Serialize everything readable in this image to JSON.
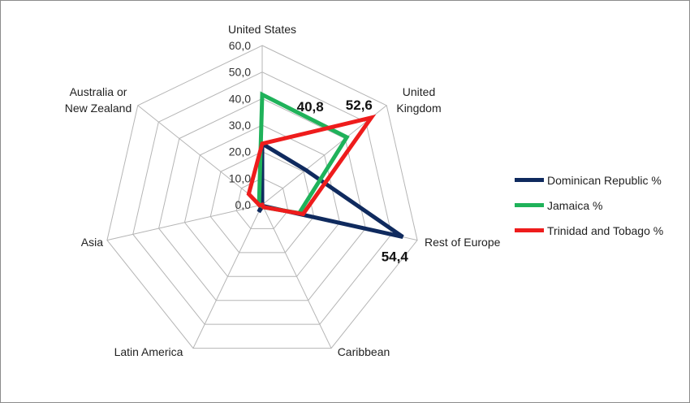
{
  "chart_data": {
    "type": "radar",
    "categories": [
      "United States",
      "United Kingdom",
      "Rest of Europe",
      "Caribbean",
      "Latin America",
      "Asia",
      "Australia or New Zealand"
    ],
    "category_lines": [
      [
        "United States"
      ],
      [
        "United",
        "Kingdom"
      ],
      [
        "Rest of Europe"
      ],
      [
        "Caribbean"
      ],
      [
        "Latin America"
      ],
      [
        "Asia"
      ],
      [
        "Australia or",
        "New Zealand"
      ]
    ],
    "rlim": [
      0,
      60
    ],
    "ticks": [
      "0,0",
      "10,0",
      "20,0",
      "30,0",
      "40,0",
      "50,0",
      "60,0"
    ],
    "tick_values": [
      0,
      10,
      20,
      30,
      40,
      50,
      60
    ],
    "series": [
      {
        "name": "Dominican Republic %",
        "color": "#0f2a5e",
        "values": [
          23,
          21,
          54.4,
          0.5,
          3,
          0,
          0
        ]
      },
      {
        "name": "Jamaica %",
        "color": "#1fb25a",
        "values": [
          41.5,
          40.8,
          14.3,
          1,
          0.5,
          1,
          1.5
        ]
      },
      {
        "name": "Trinidad and Tobago %",
        "color": "#ee1c1c",
        "values": [
          23,
          52.6,
          15.8,
          1,
          0,
          1,
          6.5
        ]
      }
    ],
    "data_labels": [
      {
        "series": "Jamaica %",
        "category": "United Kingdom",
        "text": "40,8"
      },
      {
        "series": "Trinidad and Tobago %",
        "category": "United Kingdom",
        "text": "52,6"
      },
      {
        "series": "Dominican Republic %",
        "category": "Rest of Europe",
        "text": "54,4"
      }
    ],
    "legend_position": "right",
    "grid": true
  }
}
